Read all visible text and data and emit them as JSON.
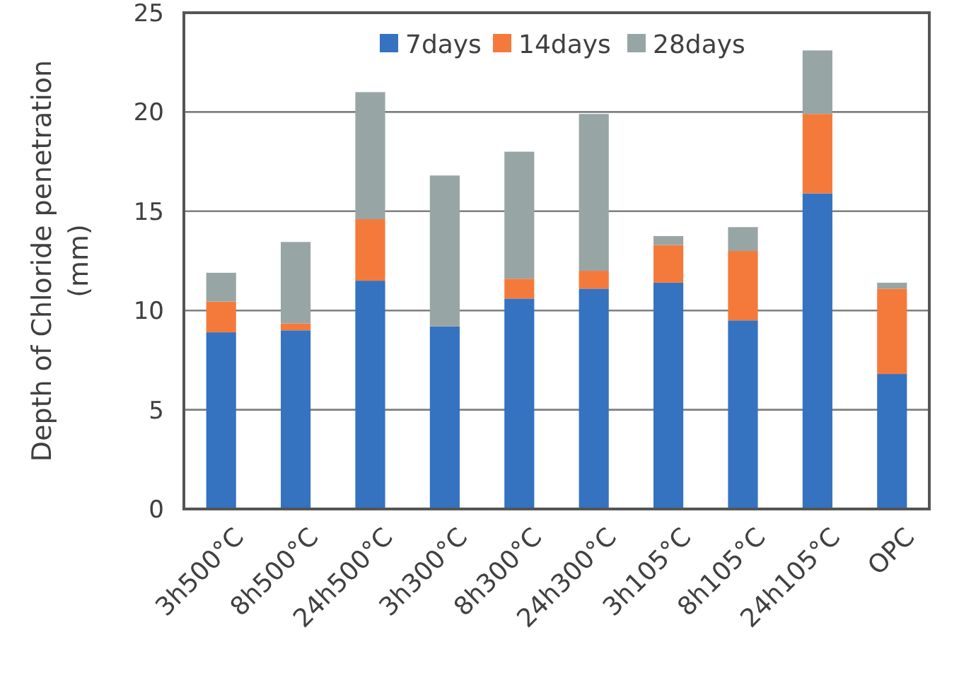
{
  "chart_data": {
    "type": "bar",
    "stacked": true,
    "ylabel": "Depth of Chloride penetration (mm)",
    "categories": [
      "3h500°C",
      "8h500°C",
      "24h500°C",
      "3h300°C",
      "8h300°C",
      "24h300°C",
      "3h105°C",
      "8h105°C",
      "24h105°C",
      "OPC"
    ],
    "series": [
      {
        "name": "7days",
        "color": "#3572c0",
        "values": [
          8.9,
          9.0,
          11.5,
          9.2,
          10.6,
          11.1,
          11.4,
          9.5,
          15.9,
          6.8
        ]
      },
      {
        "name": "14days",
        "color": "#f47a3c",
        "values": [
          1.55,
          0.35,
          3.1,
          0,
          1.0,
          0.9,
          1.9,
          3.5,
          4.0,
          4.3
        ]
      },
      {
        "name": "28days",
        "color": "#98a5a5",
        "values": [
          1.45,
          4.1,
          6.4,
          7.6,
          6.4,
          7.9,
          0.45,
          1.2,
          3.2,
          0.3
        ]
      }
    ],
    "ylim": [
      0,
      25
    ],
    "yticks": [
      0,
      5,
      10,
      15,
      20,
      25
    ],
    "grid": "y",
    "legend": "top"
  }
}
